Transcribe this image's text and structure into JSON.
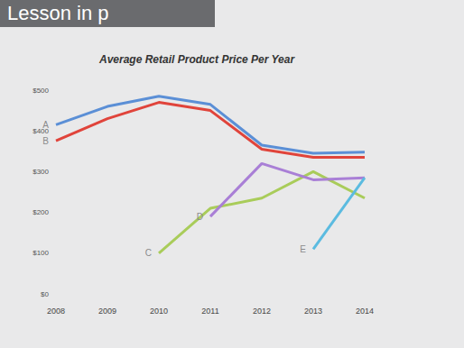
{
  "header": "Lesson in p",
  "chart_data": {
    "type": "line",
    "title": "Average Retail Product Price Per Year",
    "categories": [
      "2008",
      "2009",
      "2010",
      "2011",
      "2012",
      "2013",
      "2014"
    ],
    "series": [
      {
        "name": "A",
        "color": "#5b8fd6",
        "values": [
          415,
          460,
          485,
          465,
          365,
          345,
          348
        ]
      },
      {
        "name": "B",
        "color": "#e0443b",
        "values": [
          376,
          430,
          470,
          450,
          355,
          335,
          335
        ]
      },
      {
        "name": "C",
        "color": "#a9cc5a",
        "values": [
          null,
          null,
          100,
          210,
          235,
          300,
          235
        ]
      },
      {
        "name": "D",
        "color": "#a97fd6",
        "values": [
          null,
          null,
          null,
          190,
          320,
          280,
          285
        ]
      },
      {
        "name": "E",
        "color": "#5bbbe0",
        "values": [
          null,
          null,
          null,
          null,
          null,
          110,
          285
        ]
      }
    ],
    "ylim": [
      0,
      500
    ],
    "yticks": [
      {
        "value": 0,
        "label": "$0"
      },
      {
        "value": 100,
        "label": "$100"
      },
      {
        "value": 200,
        "label": "$200"
      },
      {
        "value": 300,
        "label": "$300"
      },
      {
        "value": 400,
        "label": "$400"
      },
      {
        "value": 500,
        "label": "$500"
      }
    ],
    "grid": false
  }
}
